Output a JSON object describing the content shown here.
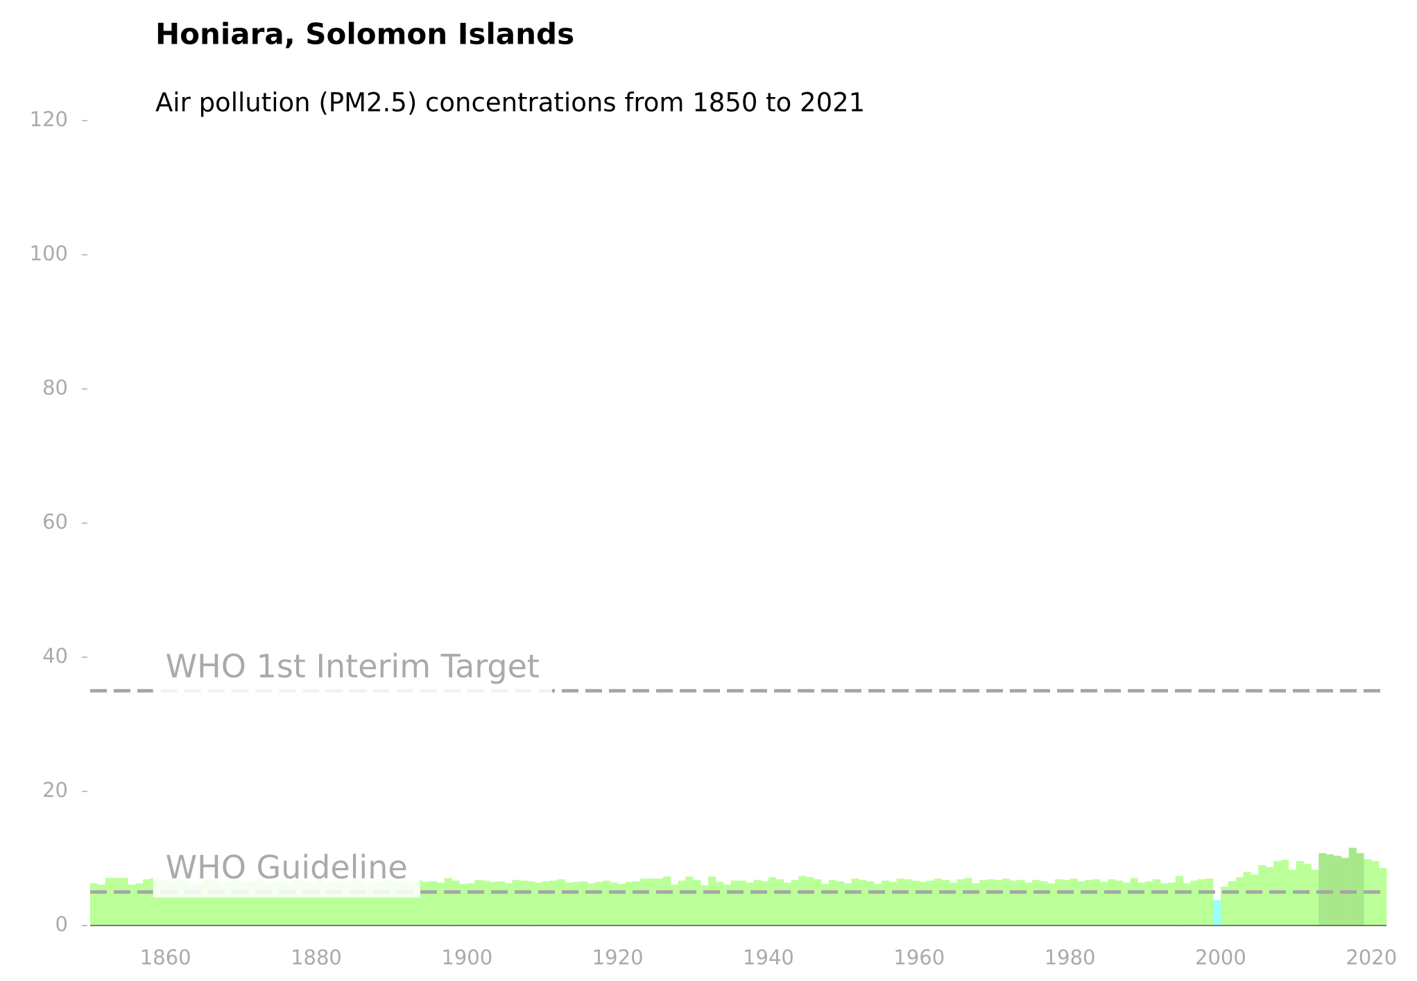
{
  "chart_data": {
    "type": "bar",
    "title": "Honiara, Solomon Islands",
    "subtitle": "Air pollution (PM2.5) concentrations from 1850 to 2021",
    "x": [
      1850,
      1851,
      1852,
      1853,
      1854,
      1855,
      1856,
      1857,
      1858,
      1859,
      1860,
      1861,
      1862,
      1863,
      1864,
      1865,
      1866,
      1867,
      1868,
      1869,
      1870,
      1871,
      1872,
      1873,
      1874,
      1875,
      1876,
      1877,
      1878,
      1879,
      1880,
      1881,
      1882,
      1883,
      1884,
      1885,
      1886,
      1887,
      1888,
      1889,
      1890,
      1891,
      1892,
      1893,
      1894,
      1895,
      1896,
      1897,
      1898,
      1899,
      1900,
      1901,
      1902,
      1903,
      1904,
      1905,
      1906,
      1907,
      1908,
      1909,
      1910,
      1911,
      1912,
      1913,
      1914,
      1915,
      1916,
      1917,
      1918,
      1919,
      1920,
      1921,
      1922,
      1923,
      1924,
      1925,
      1926,
      1927,
      1928,
      1929,
      1930,
      1931,
      1932,
      1933,
      1934,
      1935,
      1936,
      1937,
      1938,
      1939,
      1940,
      1941,
      1942,
      1943,
      1944,
      1945,
      1946,
      1947,
      1948,
      1949,
      1950,
      1951,
      1952,
      1953,
      1954,
      1955,
      1956,
      1957,
      1958,
      1959,
      1960,
      1961,
      1962,
      1963,
      1964,
      1965,
      1966,
      1967,
      1968,
      1969,
      1970,
      1971,
      1972,
      1973,
      1974,
      1975,
      1976,
      1977,
      1978,
      1979,
      1980,
      1981,
      1982,
      1983,
      1984,
      1985,
      1986,
      1987,
      1988,
      1989,
      1990,
      1991,
      1992,
      1993,
      1994,
      1995,
      1996,
      1997,
      1998,
      1999,
      2000,
      2001,
      2002,
      2003,
      2004,
      2005,
      2006,
      2007,
      2008,
      2009,
      2010,
      2011,
      2012,
      2013,
      2014,
      2015,
      2016,
      2017,
      2018,
      2019,
      2020,
      2021
    ],
    "values": [
      6.3,
      6.1,
      7.1,
      7.1,
      7.1,
      6.1,
      6.3,
      6.9,
      7.1,
      6.9,
      6.5,
      6.8,
      6.6,
      6.2,
      6.4,
      6.9,
      6.7,
      6.3,
      6.5,
      6.8,
      6.4,
      6.6,
      6.9,
      6.3,
      6.5,
      6.7,
      6.2,
      6.8,
      6.6,
      6.4,
      6.9,
      6.3,
      6.5,
      6.7,
      6.4,
      6.8,
      6.2,
      6.6,
      6.5,
      6.9,
      6.4,
      6.7,
      6.3,
      6.8,
      6.5,
      6.6,
      6.4,
      7.1,
      6.7,
      6.2,
      6.3,
      6.8,
      6.7,
      6.5,
      6.6,
      6.3,
      6.8,
      6.7,
      6.6,
      6.4,
      6.6,
      6.7,
      6.9,
      6.4,
      6.5,
      6.6,
      6.3,
      6.5,
      6.7,
      6.4,
      6.2,
      6.5,
      6.6,
      7.0,
      7.0,
      7.0,
      7.3,
      6.1,
      6.7,
      7.3,
      6.8,
      6.0,
      7.3,
      6.5,
      6.1,
      6.7,
      6.7,
      6.4,
      6.8,
      6.6,
      7.2,
      6.9,
      6.4,
      6.8,
      7.4,
      7.2,
      6.9,
      6.2,
      6.8,
      6.6,
      6.3,
      7.0,
      6.8,
      6.6,
      6.2,
      6.7,
      6.5,
      7.0,
      6.9,
      6.7,
      6.5,
      6.7,
      7.0,
      6.8,
      6.4,
      6.9,
      7.1,
      6.3,
      6.8,
      6.9,
      6.8,
      7.0,
      6.7,
      6.8,
      6.4,
      6.8,
      6.6,
      6.3,
      6.9,
      6.8,
      7.0,
      6.6,
      6.8,
      6.9,
      6.5,
      6.9,
      6.7,
      6.4,
      7.1,
      6.4,
      6.6,
      6.9,
      6.3,
      6.4,
      7.4,
      6.3,
      6.7,
      6.9,
      7.0,
      3.8,
      5.8,
      6.6,
      7.2,
      8.0,
      7.6,
      9.0,
      8.7,
      9.6,
      9.8,
      8.3,
      9.6,
      9.2,
      8.3,
      10.8,
      10.6,
      10.4,
      10.1,
      11.6,
      10.8,
      9.9,
      9.6,
      8.6
    ],
    "colors": [
      "#bbff99",
      "#bbff99",
      "#bbff99",
      "#bbff99",
      "#bbff99",
      "#bbff99",
      "#bbff99",
      "#bbff99",
      "#bbff99",
      "#bbff99",
      "#bbff99",
      "#bbff99",
      "#bbff99",
      "#bbff99",
      "#bbff99",
      "#bbff99",
      "#bbff99",
      "#bbff99",
      "#bbff99",
      "#bbff99",
      "#bbff99",
      "#bbff99",
      "#bbff99",
      "#bbff99",
      "#bbff99",
      "#bbff99",
      "#bbff99",
      "#bbff99",
      "#bbff99",
      "#bbff99",
      "#bbff99",
      "#bbff99",
      "#bbff99",
      "#bbff99",
      "#bbff99",
      "#bbff99",
      "#bbff99",
      "#bbff99",
      "#bbff99",
      "#bbff99",
      "#bbff99",
      "#bbff99",
      "#bbff99",
      "#bbff99",
      "#bbff99",
      "#bbff99",
      "#bbff99",
      "#bbff99",
      "#bbff99",
      "#bbff99",
      "#bbff99",
      "#bbff99",
      "#bbff99",
      "#bbff99",
      "#bbff99",
      "#bbff99",
      "#bbff99",
      "#bbff99",
      "#bbff99",
      "#bbff99",
      "#bbff99",
      "#bbff99",
      "#bbff99",
      "#bbff99",
      "#bbff99",
      "#bbff99",
      "#bbff99",
      "#bbff99",
      "#bbff99",
      "#bbff99",
      "#bbff99",
      "#bbff99",
      "#bbff99",
      "#bbff99",
      "#bbff99",
      "#bbff99",
      "#bbff99",
      "#bbff99",
      "#bbff99",
      "#bbff99",
      "#bbff99",
      "#bbff99",
      "#bbff99",
      "#bbff99",
      "#bbff99",
      "#bbff99",
      "#bbff99",
      "#bbff99",
      "#bbff99",
      "#bbff99",
      "#bbff99",
      "#bbff99",
      "#bbff99",
      "#bbff99",
      "#bbff99",
      "#bbff99",
      "#bbff99",
      "#bbff99",
      "#bbff99",
      "#bbff99",
      "#bbff99",
      "#bbff99",
      "#bbff99",
      "#bbff99",
      "#bbff99",
      "#bbff99",
      "#bbff99",
      "#bbff99",
      "#bbff99",
      "#bbff99",
      "#bbff99",
      "#bbff99",
      "#bbff99",
      "#bbff99",
      "#bbff99",
      "#bbff99",
      "#bbff99",
      "#bbff99",
      "#bbff99",
      "#bbff99",
      "#bbff99",
      "#bbff99",
      "#bbff99",
      "#bbff99",
      "#bbff99",
      "#bbff99",
      "#bbff99",
      "#bbff99",
      "#bbff99",
      "#bbff99",
      "#bbff99",
      "#bbff99",
      "#bbff99",
      "#bbff99",
      "#bbff99",
      "#bbff99",
      "#bbff99",
      "#bbff99",
      "#bbff99",
      "#bbff99",
      "#bbff99",
      "#bbff99",
      "#bbff99",
      "#bbff99",
      "#bbff99",
      "#bbff99",
      "#bbff99",
      "#bbff99",
      "#bbff99",
      "#99ffff",
      "#bbff99",
      "#bbff99",
      "#bbff99",
      "#bbff99",
      "#bbff99",
      "#bbff99",
      "#bbff99",
      "#bbff99",
      "#bbff99",
      "#bbff99",
      "#bbff99",
      "#bbff99",
      "#bbff99",
      "#a8e88a",
      "#a8e88a",
      "#a8e88a",
      "#a8e88a",
      "#a8e88a",
      "#a8e88a",
      "#bbff99",
      "#bbff99",
      "#bbff99"
    ],
    "reference_lines": [
      {
        "value": 35,
        "label": "WHO 1st Interim Target"
      },
      {
        "value": 5,
        "label": "WHO Guideline"
      }
    ],
    "xlim": [
      1850,
      2022
    ],
    "xticks": [
      1860,
      1880,
      1900,
      1920,
      1940,
      1960,
      1980,
      2000,
      2020
    ],
    "ylim": [
      0,
      120
    ],
    "yticks": [
      0,
      20,
      40,
      60,
      80,
      100,
      120
    ]
  }
}
